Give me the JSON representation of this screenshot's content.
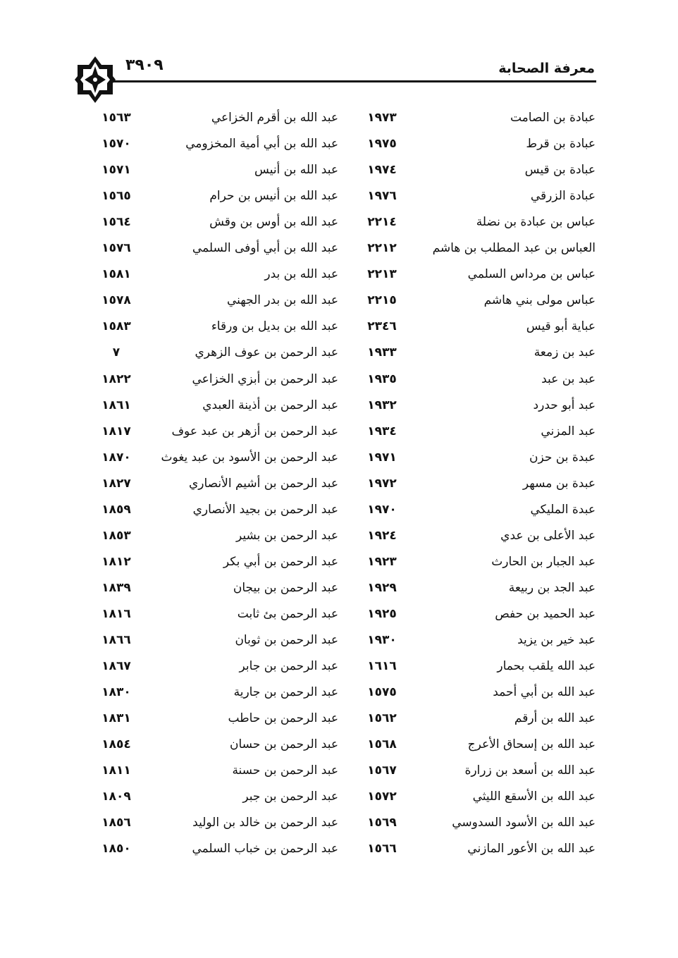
{
  "header": {
    "title": "معرفة الصحابة",
    "page_number": "٣٩٠٩"
  },
  "rows": [
    {
      "right_name": "عبادة بن الصامت",
      "right_num": "١٩٧٣",
      "left_name": "عبد الله بن أقرم الخزاعي",
      "left_num": "١٥٦٣"
    },
    {
      "right_name": "عبادة بن قرط",
      "right_num": "١٩٧٥",
      "left_name": "عبد الله بن أبي أمية المخزومي",
      "left_num": "١٥٧٠"
    },
    {
      "right_name": "عبادة بن قيس",
      "right_num": "١٩٧٤",
      "left_name": "عبد الله بن أنيس",
      "left_num": "١٥٧١"
    },
    {
      "right_name": "عبادة الزرقي",
      "right_num": "١٩٧٦",
      "left_name": "عبد الله بن أنيس بن حرام",
      "left_num": "١٥٦٥"
    },
    {
      "right_name": "عباس بن عبادة بن نضلة",
      "right_num": "٢٢١٤",
      "left_name": "عبد الله بن أوس بن وقش",
      "left_num": "١٥٦٤"
    },
    {
      "right_name": "العباس بن عبد المطلب بن هاشم",
      "right_num": "٢٢١٢",
      "left_name": "عبد الله بن أبي أوفى السلمي",
      "left_num": "١٥٧٦"
    },
    {
      "right_name": "عباس بن مرداس السلمي",
      "right_num": "٢٢١٣",
      "left_name": "عبد الله بن بدر",
      "left_num": "١٥٨١"
    },
    {
      "right_name": "عباس مولى بني هاشم",
      "right_num": "٢٢١٥",
      "left_name": "عبد الله بن بدر الجهني",
      "left_num": "١٥٧٨"
    },
    {
      "right_name": "عباية أبو قيس",
      "right_num": "٢٣٤٦",
      "left_name": "عبد الله بن بديل بن ورقاء",
      "left_num": "١٥٨٣"
    },
    {
      "right_name": "عبد بن زمعة",
      "right_num": "١٩٣٣",
      "left_name": "عبد الرحمن بن عوف الزهري",
      "left_num": "٧"
    },
    {
      "right_name": "عبد بن عبد",
      "right_num": "١٩٣٥",
      "left_name": "عبد الرحمن بن أبزي الخزاعي",
      "left_num": "١٨٢٢"
    },
    {
      "right_name": "عبد أبو حدرد",
      "right_num": "١٩٣٢",
      "left_name": "عبد الرحمن بن أذينة العبدي",
      "left_num": "١٨٦١"
    },
    {
      "right_name": "عبد المزني",
      "right_num": "١٩٣٤",
      "left_name": "عبد الرحمن بن أزهر بن عبد عوف",
      "left_num": "١٨١٧"
    },
    {
      "right_name": "عبدة بن حزن",
      "right_num": "١٩٧١",
      "left_name": "عبد الرحمن بن الأسود بن عبد يغوث",
      "left_num": "١٨٧٠"
    },
    {
      "right_name": "عبدة بن مسهر",
      "right_num": "١٩٧٢",
      "left_name": "عبد الرحمن بن أشيم الأنصاري",
      "left_num": "١٨٢٧"
    },
    {
      "right_name": "عبدة المليكي",
      "right_num": "١٩٧٠",
      "left_name": "عبد الرحمن بن بجيد الأنصاري",
      "left_num": "١٨٥٩"
    },
    {
      "right_name": "عبد الأعلى بن عدي",
      "right_num": "١٩٢٤",
      "left_name": "عبد الرحمن بن بشير",
      "left_num": "١٨٥٣"
    },
    {
      "right_name": "عبد الجبار بن الحارث",
      "right_num": "١٩٢٣",
      "left_name": "عبد الرحمن بن أبي بكر",
      "left_num": "١٨١٢"
    },
    {
      "right_name": "عبد الجد بن ربيعة",
      "right_num": "١٩٢٩",
      "left_name": "عبد الرحمن بن بيجان",
      "left_num": "١٨٣٩"
    },
    {
      "right_name": "عبد الحميد بن حفص",
      "right_num": "١٩٢٥",
      "left_name": "عبد الرحمن بئ ثابت",
      "left_num": "١٨١٦"
    },
    {
      "right_name": "عبد خير بن يزيد",
      "right_num": "١٩٣٠",
      "left_name": "عبد الرحمن بن ثوبان",
      "left_num": "١٨٦٦"
    },
    {
      "right_name": "عبد الله يلقب بحمار",
      "right_num": "١٦١٦",
      "left_name": "عبد الرحمن بن جابر",
      "left_num": "١٨٦٧"
    },
    {
      "right_name": "عبد الله بن أبي أحمد",
      "right_num": "١٥٧٥",
      "left_name": "عبد الرحمن بن جارية",
      "left_num": "١٨٣٠"
    },
    {
      "right_name": "عبد الله بن أرقم",
      "right_num": "١٥٦٢",
      "left_name": "عبد الرحمن بن حاطب",
      "left_num": "١٨٣١"
    },
    {
      "right_name": "عبد الله بن إسحاق الأعرج",
      "right_num": "١٥٦٨",
      "left_name": "عبد الرحمن بن حسان",
      "left_num": "١٨٥٤"
    },
    {
      "right_name": "عبد الله بن أسعد بن زرارة",
      "right_num": "١٥٦٧",
      "left_name": "عبد الرحمن بن حسنة",
      "left_num": "١٨١١"
    },
    {
      "right_name": "عبد الله بن الأسقع الليثي",
      "right_num": "١٥٧٢",
      "left_name": "عبد الرحمن بن جبر",
      "left_num": "١٨٠٩"
    },
    {
      "right_name": "عبد الله بن الأسود السدوسي",
      "right_num": "١٥٦٩",
      "left_name": "عبد الرحمن بن خالد بن الوليد",
      "left_num": "١٨٥٦"
    },
    {
      "right_name": "عبد الله بن الأعور المازني",
      "right_num": "١٥٦٦",
      "left_name": "عبد الرحمن بن خباب السلمي",
      "left_num": "١٨٥٠"
    }
  ]
}
